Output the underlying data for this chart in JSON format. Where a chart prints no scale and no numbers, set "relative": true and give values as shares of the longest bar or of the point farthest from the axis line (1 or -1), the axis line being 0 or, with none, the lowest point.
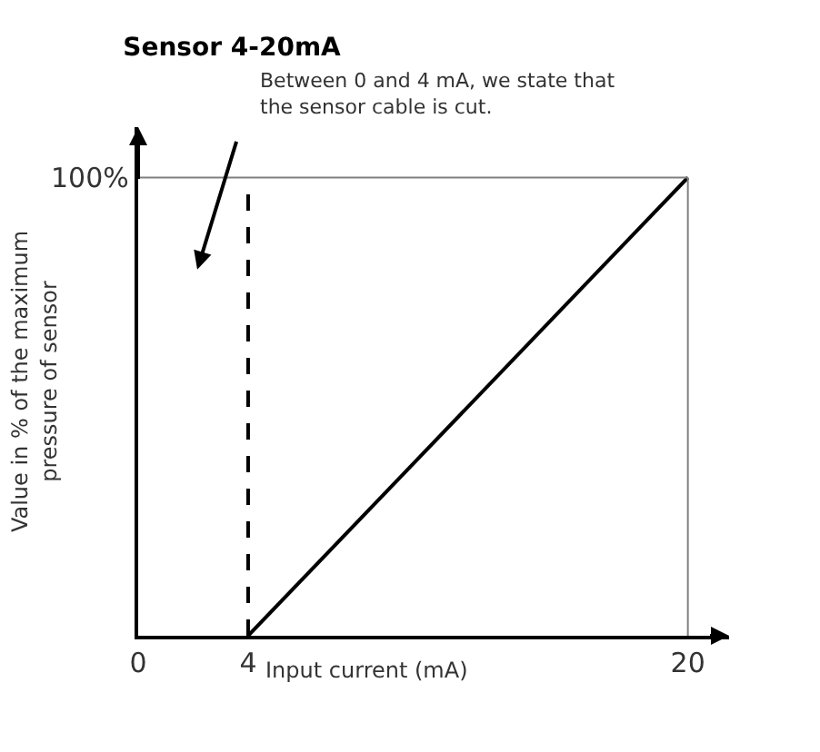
{
  "chart_data": {
    "type": "line",
    "relative": true,
    "title": "Sensor 4-20mA",
    "xlabel": "Input current (mA)",
    "ylabel": "Value in % of the maximum\npressure of sensor",
    "x": [
      4,
      20
    ],
    "series": [
      {
        "color": "#000000",
        "values": [
          0,
          1
        ]
      }
    ],
    "xlim": [
      0,
      21.5
    ],
    "xticks": [
      0,
      4,
      20
    ],
    "ref_lines": [
      {
        "axis": "x",
        "value": 4,
        "color": "#000000",
        "line_style": "dashed"
      },
      {
        "axis": "y",
        "value": 1,
        "color": "#808080",
        "line_style": "solid"
      },
      {
        "axis": "x",
        "value": 20,
        "color": "#808080",
        "line_style": "solid"
      }
    ],
    "annotations": [
      "Between 0 and 4 mA, we state that\nthe sensor cable is cut.",
      {
        "text": "100%",
        "x": 0,
        "y": 1
      }
    ],
    "legend": false,
    "marker": "none",
    "line_style": "solid"
  }
}
